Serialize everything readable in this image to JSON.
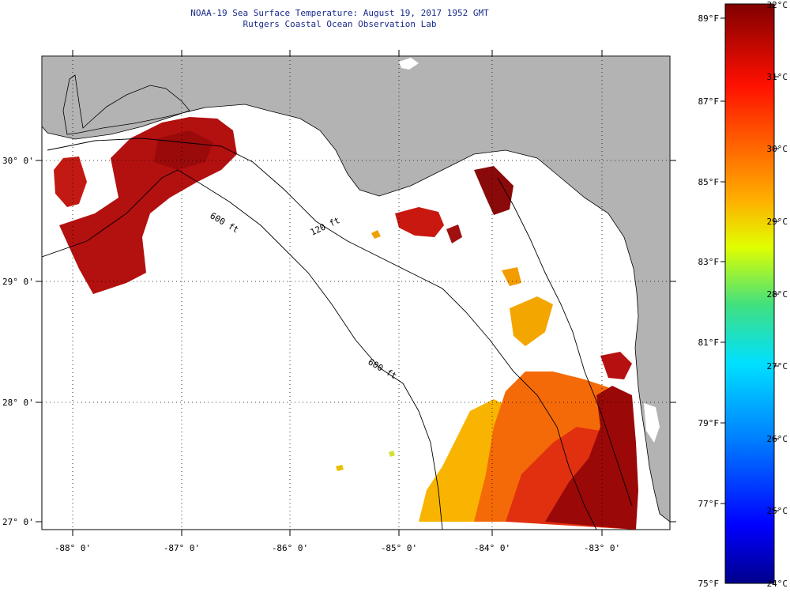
{
  "header": {
    "title": "NOAA-19 Sea Surface Temperature:  August 19, 2017 1952 GMT",
    "subtitle": "Rutgers Coastal Ocean Observation Lab"
  },
  "map": {
    "lat_labels": [
      "30° 0'",
      "29° 0'",
      "28° 0'",
      "27° 0'"
    ],
    "lon_labels": [
      "-88° 0'",
      "-87° 0'",
      "-86° 0'",
      "-85° 0'",
      "-84° 0'",
      "-83° 0'"
    ],
    "contour_labels": [
      "120 ft",
      "600 ft",
      "600 ft"
    ],
    "colors": {
      "land": "#b3b3b3",
      "no_data": "#ffffff",
      "coast": "#000000"
    }
  },
  "colorbar": {
    "fahrenheit_labels": [
      "89°F",
      "87°F",
      "85°F",
      "83°F",
      "81°F",
      "79°F",
      "77°F",
      "75°F"
    ],
    "celsius_labels": [
      "32°C",
      "31°C",
      "30°C",
      "29°C",
      "28°C",
      "27°C",
      "26°C",
      "25°C",
      "24°C"
    ],
    "min_c": 24,
    "max_c": 32,
    "min_f": 75,
    "max_f": 89
  }
}
